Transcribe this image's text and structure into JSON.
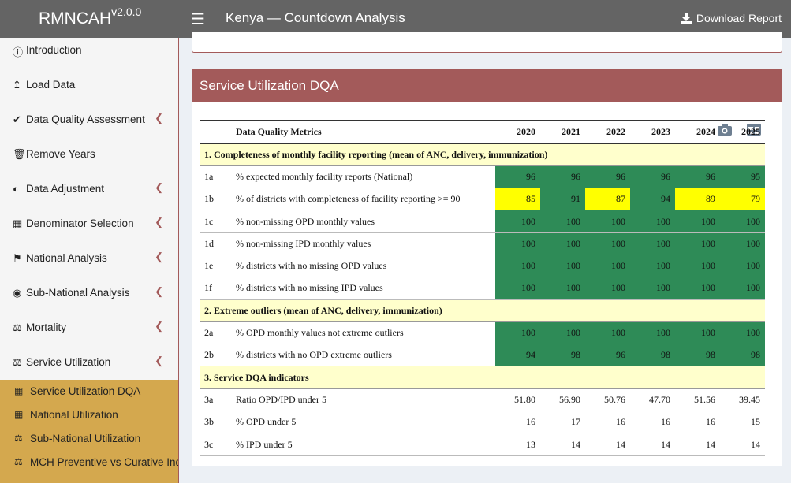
{
  "app": {
    "name": "RMNCAH",
    "version": "v2.0.0",
    "title": "Kenya — Countdown Analysis",
    "download_label": "Download Report"
  },
  "sidebar": {
    "items": [
      {
        "label": "Introduction",
        "icon": "info-circle-icon",
        "has_chevron": false
      },
      {
        "label": "Load Data",
        "icon": "upload-icon",
        "has_chevron": false
      },
      {
        "label": "Data Quality Assessment",
        "icon": "check-circle-icon",
        "has_chevron": true
      },
      {
        "label": "Remove Years",
        "icon": "trash-icon",
        "has_chevron": false
      },
      {
        "label": "Data Adjustment",
        "icon": "adjust-icon",
        "has_chevron": true
      },
      {
        "label": "Denominator Selection",
        "icon": "calculator-icon",
        "has_chevron": true
      },
      {
        "label": "National Analysis",
        "icon": "flag-icon",
        "has_chevron": true
      },
      {
        "label": "Sub-National Analysis",
        "icon": "globe-icon",
        "has_chevron": true
      },
      {
        "label": "Mortality",
        "icon": "scale-icon",
        "has_chevron": true
      },
      {
        "label": "Service Utilization",
        "icon": "scale-icon",
        "has_chevron": true
      }
    ],
    "sub_items": [
      {
        "label": "Service Utilization DQA",
        "icon": "map-icon"
      },
      {
        "label": "National Utilization",
        "icon": "map-icon"
      },
      {
        "label": "Sub-National Utilization",
        "icon": "scale-icon"
      },
      {
        "label": "MCH Preventive vs Curative Index",
        "icon": "scale-icon"
      }
    ]
  },
  "box": {
    "title": "Service Utilization DQA"
  },
  "table": {
    "header_label": "Data Quality Metrics",
    "years": [
      "2020",
      "2021",
      "2022",
      "2023",
      "2024",
      "2025"
    ],
    "sections": [
      {
        "title": "1. Completeness of monthly facility reporting (mean of ANC, delivery, immunization)",
        "rows": [
          {
            "code": "1a",
            "label": "% expected monthly facility reports (National)",
            "values": [
              "96",
              "96",
              "96",
              "96",
              "96",
              "95"
            ],
            "colors": [
              "g",
              "g",
              "g",
              "g",
              "g",
              "g"
            ]
          },
          {
            "code": "1b",
            "label": "% of districts with completeness of facility reporting >= 90",
            "values": [
              "85",
              "91",
              "87",
              "94",
              "89",
              "79"
            ],
            "colors": [
              "y",
              "g",
              "y",
              "g",
              "y",
              "y"
            ]
          },
          {
            "code": "1c",
            "label": "% non-missing OPD monthly values",
            "values": [
              "100",
              "100",
              "100",
              "100",
              "100",
              "100"
            ],
            "colors": [
              "g",
              "g",
              "g",
              "g",
              "g",
              "g"
            ]
          },
          {
            "code": "1d",
            "label": "% non-missing IPD monthly values",
            "values": [
              "100",
              "100",
              "100",
              "100",
              "100",
              "100"
            ],
            "colors": [
              "g",
              "g",
              "g",
              "g",
              "g",
              "g"
            ]
          },
          {
            "code": "1e",
            "label": "% districts with no missing OPD values",
            "values": [
              "100",
              "100",
              "100",
              "100",
              "100",
              "100"
            ],
            "colors": [
              "g",
              "g",
              "g",
              "g",
              "g",
              "g"
            ]
          },
          {
            "code": "1f",
            "label": "% districts with no missing IPD values",
            "values": [
              "100",
              "100",
              "100",
              "100",
              "100",
              "100"
            ],
            "colors": [
              "g",
              "g",
              "g",
              "g",
              "g",
              "g"
            ]
          }
        ]
      },
      {
        "title": "2. Extreme outliers (mean of ANC, delivery, immunization)",
        "rows": [
          {
            "code": "2a",
            "label": "% OPD monthly values not extreme outliers",
            "values": [
              "100",
              "100",
              "100",
              "100",
              "100",
              "100"
            ],
            "colors": [
              "g",
              "g",
              "g",
              "g",
              "g",
              "g"
            ]
          },
          {
            "code": "2b",
            "label": "% districts with no OPD extreme outliers",
            "values": [
              "94",
              "98",
              "96",
              "98",
              "98",
              "98"
            ],
            "colors": [
              "g",
              "g",
              "g",
              "g",
              "g",
              "g"
            ]
          }
        ]
      },
      {
        "title": "3. Service DQA indicators",
        "rows": [
          {
            "code": "3a",
            "label": "Ratio OPD/IPD under 5",
            "values": [
              "51.80",
              "56.90",
              "50.76",
              "47.70",
              "51.56",
              "39.45"
            ],
            "colors": [
              "",
              "",
              "",
              "",
              "",
              ""
            ]
          },
          {
            "code": "3b",
            "label": "% OPD under 5",
            "values": [
              "16",
              "17",
              "16",
              "16",
              "16",
              "15"
            ],
            "colors": [
              "",
              "",
              "",
              "",
              "",
              ""
            ]
          },
          {
            "code": "3c",
            "label": "% IPD under 5",
            "values": [
              "13",
              "14",
              "14",
              "14",
              "14",
              "14"
            ],
            "colors": [
              "",
              "",
              "",
              "",
              "",
              ""
            ]
          }
        ]
      }
    ]
  },
  "colors": {
    "header_bg": "#646464",
    "accent": "#a35a5a",
    "submenu_bg": "#d4a84e",
    "good": "#2e8b57",
    "warn": "#ffff00",
    "section_bg": "#ffffcc"
  }
}
